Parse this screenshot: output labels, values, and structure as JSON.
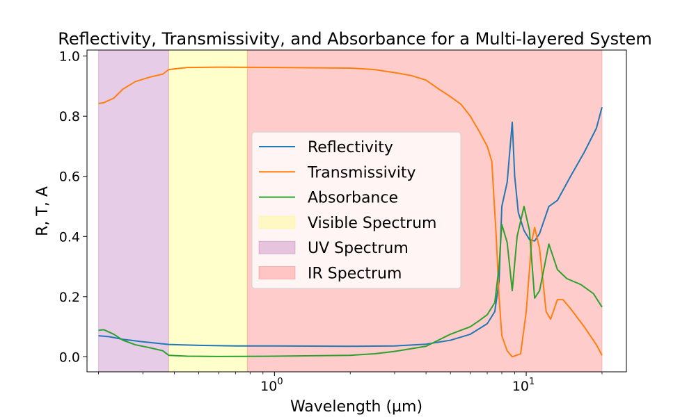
{
  "chart_data": {
    "type": "line",
    "title": "Reflectivity, Transmissivity, and Absorbance for a Multi-layered System",
    "xlabel": "Wavelength (µm)",
    "ylabel": "R, T, A",
    "xscale": "log",
    "xlim": [
      0.18,
      25
    ],
    "ylim": [
      -0.05,
      1.02
    ],
    "x_ticks": [
      {
        "value": 1,
        "base": "10",
        "exp": "0"
      },
      {
        "value": 10,
        "base": "10",
        "exp": "1"
      }
    ],
    "y_ticks": [
      {
        "value": 0.0,
        "label": "0.0"
      },
      {
        "value": 0.2,
        "label": "0.2"
      },
      {
        "value": 0.4,
        "label": "0.4"
      },
      {
        "value": 0.6,
        "label": "0.6"
      },
      {
        "value": 0.8,
        "label": "0.8"
      },
      {
        "value": 1.0,
        "label": "1.0"
      }
    ],
    "grid": false,
    "legend_position": "center",
    "regions": [
      {
        "name": "Visible Spectrum",
        "range": [
          0.38,
          0.78
        ],
        "color": "#ffff00",
        "alpha": 0.2
      },
      {
        "name": "UV Spectrum",
        "range": [
          0.2,
          0.38
        ],
        "color": "#800080",
        "alpha": 0.2
      },
      {
        "name": "IR Spectrum",
        "range": [
          0.78,
          20
        ],
        "color": "#ff0000",
        "alpha": 0.2
      }
    ],
    "series": [
      {
        "name": "Reflectivity",
        "color": "#1f77b4",
        "points": [
          [
            0.2,
            0.07
          ],
          [
            0.22,
            0.067
          ],
          [
            0.25,
            0.058
          ],
          [
            0.3,
            0.05
          ],
          [
            0.38,
            0.041
          ],
          [
            0.5,
            0.038
          ],
          [
            0.7,
            0.036
          ],
          [
            1.0,
            0.036
          ],
          [
            2.0,
            0.035
          ],
          [
            3.0,
            0.036
          ],
          [
            4.0,
            0.042
          ],
          [
            5.0,
            0.055
          ],
          [
            6.0,
            0.075
          ],
          [
            7.0,
            0.11
          ],
          [
            7.5,
            0.15
          ],
          [
            7.8,
            0.25
          ],
          [
            8.0,
            0.5
          ],
          [
            8.4,
            0.58
          ],
          [
            8.8,
            0.78
          ],
          [
            9.0,
            0.6
          ],
          [
            9.3,
            0.48
          ],
          [
            9.8,
            0.42
          ],
          [
            10.3,
            0.39
          ],
          [
            10.8,
            0.385
          ],
          [
            11.3,
            0.41
          ],
          [
            12.3,
            0.5
          ],
          [
            13.3,
            0.52
          ],
          [
            15.0,
            0.6
          ],
          [
            17.0,
            0.68
          ],
          [
            19.0,
            0.76
          ],
          [
            20.0,
            0.83
          ]
        ]
      },
      {
        "name": "Transmissivity",
        "color": "#ff7f0e",
        "points": [
          [
            0.2,
            0.842
          ],
          [
            0.21,
            0.845
          ],
          [
            0.23,
            0.86
          ],
          [
            0.25,
            0.89
          ],
          [
            0.28,
            0.915
          ],
          [
            0.32,
            0.93
          ],
          [
            0.36,
            0.94
          ],
          [
            0.38,
            0.955
          ],
          [
            0.45,
            0.962
          ],
          [
            0.6,
            0.963
          ],
          [
            1.0,
            0.962
          ],
          [
            2.0,
            0.96
          ],
          [
            2.5,
            0.955
          ],
          [
            3.0,
            0.945
          ],
          [
            3.5,
            0.935
          ],
          [
            4.0,
            0.92
          ],
          [
            4.5,
            0.89
          ],
          [
            5.0,
            0.865
          ],
          [
            5.5,
            0.84
          ],
          [
            6.0,
            0.8
          ],
          [
            6.5,
            0.75
          ],
          [
            7.0,
            0.7
          ],
          [
            7.3,
            0.65
          ],
          [
            7.6,
            0.4
          ],
          [
            7.8,
            0.2
          ],
          [
            8.0,
            0.07
          ],
          [
            8.4,
            0.02
          ],
          [
            8.8,
            0.0
          ],
          [
            9.5,
            0.01
          ],
          [
            10.0,
            0.15
          ],
          [
            10.5,
            0.38
          ],
          [
            10.8,
            0.43
          ],
          [
            11.3,
            0.36
          ],
          [
            12.0,
            0.15
          ],
          [
            12.5,
            0.125
          ],
          [
            13.3,
            0.19
          ],
          [
            14.0,
            0.19
          ],
          [
            15.0,
            0.16
          ],
          [
            17.0,
            0.1
          ],
          [
            19.0,
            0.04
          ],
          [
            20.0,
            0.005
          ]
        ]
      },
      {
        "name": "Absorbance",
        "color": "#2ca02c",
        "points": [
          [
            0.2,
            0.088
          ],
          [
            0.21,
            0.09
          ],
          [
            0.23,
            0.075
          ],
          [
            0.25,
            0.055
          ],
          [
            0.28,
            0.04
          ],
          [
            0.32,
            0.03
          ],
          [
            0.36,
            0.02
          ],
          [
            0.38,
            0.005
          ],
          [
            0.45,
            0.002
          ],
          [
            0.6,
            0.001
          ],
          [
            1.0,
            0.002
          ],
          [
            2.0,
            0.005
          ],
          [
            2.5,
            0.01
          ],
          [
            3.0,
            0.018
          ],
          [
            4.0,
            0.035
          ],
          [
            5.0,
            0.075
          ],
          [
            6.0,
            0.1
          ],
          [
            6.5,
            0.12
          ],
          [
            7.0,
            0.14
          ],
          [
            7.5,
            0.18
          ],
          [
            7.8,
            0.3
          ],
          [
            8.0,
            0.44
          ],
          [
            8.4,
            0.38
          ],
          [
            8.8,
            0.22
          ],
          [
            9.2,
            0.4
          ],
          [
            9.8,
            0.5
          ],
          [
            10.3,
            0.42
          ],
          [
            10.8,
            0.195
          ],
          [
            11.3,
            0.22
          ],
          [
            12.3,
            0.375
          ],
          [
            13.3,
            0.29
          ],
          [
            14.5,
            0.26
          ],
          [
            16.5,
            0.24
          ],
          [
            18.5,
            0.21
          ],
          [
            20.0,
            0.165
          ]
        ]
      }
    ]
  }
}
